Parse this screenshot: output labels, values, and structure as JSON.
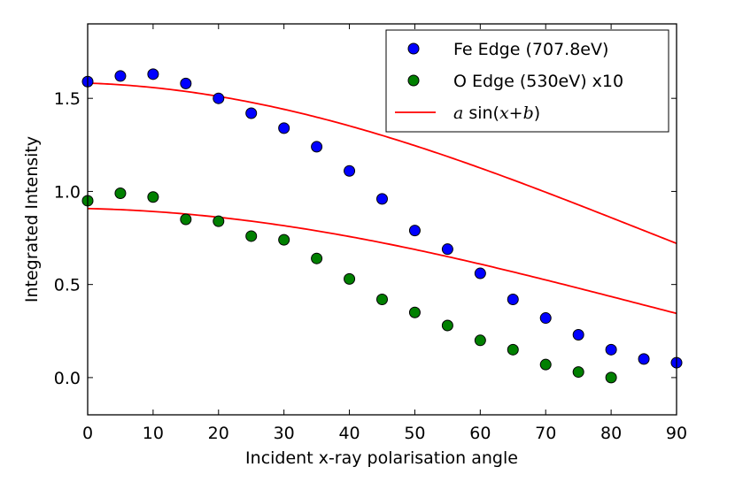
{
  "chart_data": {
    "type": "scatter",
    "title": "",
    "xlabel": "Incident x-ray polarisation angle",
    "ylabel": "Integrated Intensity",
    "xlim": [
      0,
      90
    ],
    "ylim": [
      -0.2,
      1.9
    ],
    "xticks": [
      0,
      10,
      20,
      30,
      40,
      50,
      60,
      70,
      80,
      90
    ],
    "xtick_labels": [
      "0",
      "10",
      "20",
      "30",
      "40",
      "50",
      "60",
      "70",
      "80",
      "90"
    ],
    "yticks": [
      0.0,
      0.5,
      1.0,
      1.5
    ],
    "ytick_labels": [
      "0.0",
      "0.5",
      "1.0",
      "1.5"
    ],
    "grid": false,
    "legend_position": "top-right",
    "series": [
      {
        "name": "Fe Edge (707.8eV)",
        "kind": "points",
        "color": "#0000ff",
        "x": [
          0,
          5,
          10,
          15,
          20,
          25,
          30,
          35,
          40,
          45,
          50,
          55,
          60,
          65,
          70,
          75,
          80,
          85,
          90
        ],
        "y": [
          1.59,
          1.62,
          1.63,
          1.58,
          1.5,
          1.42,
          1.34,
          1.24,
          1.11,
          0.96,
          0.79,
          0.69,
          0.56,
          0.42,
          0.32,
          0.23,
          0.15,
          0.1,
          0.08
        ]
      },
      {
        "name": "O Edge (530eV) x10",
        "kind": "points",
        "color": "#008000",
        "x": [
          0,
          5,
          10,
          15,
          20,
          25,
          30,
          35,
          40,
          45,
          50,
          55,
          60,
          65,
          70,
          75,
          80
        ],
        "y": [
          0.95,
          0.99,
          0.97,
          0.85,
          0.84,
          0.76,
          0.74,
          0.64,
          0.53,
          0.42,
          0.35,
          0.28,
          0.2,
          0.15,
          0.07,
          0.03,
          0.0
        ]
      },
      {
        "name": "a sin(x+b)",
        "legend_math": "a",
        "legend_func": "sin(",
        "legend_arg": "x+b",
        "legend_close": ")",
        "kind": "line",
        "color": "#ff0000",
        "fits": [
          {
            "fit_for": "Fe Edge (707.8eV)",
            "a": 0.795,
            "phase_deg": 95,
            "offset": 0.79
          },
          {
            "fit_for": "O Edge (530eV) x10",
            "a": 0.52,
            "phase_deg": 95,
            "offset": 0.39
          }
        ]
      }
    ]
  }
}
